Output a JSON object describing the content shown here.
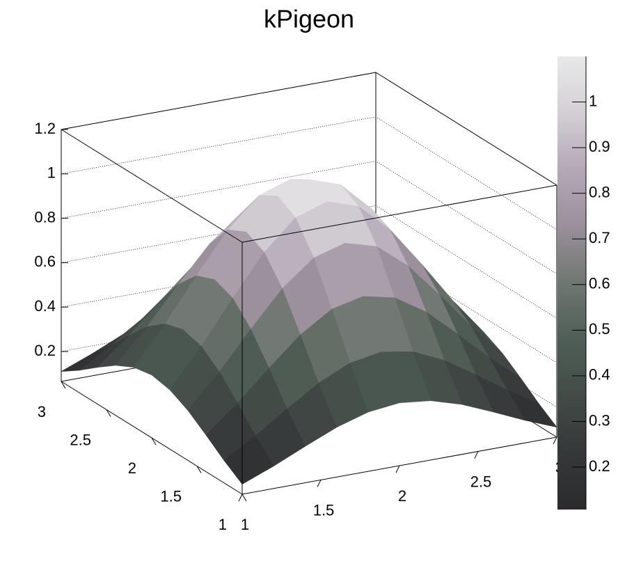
{
  "chart_data": {
    "type": "surface",
    "title": "kPigeon",
    "x": [
      1,
      1.2,
      1.4,
      1.6,
      1.8,
      2,
      2.2,
      2.4,
      2.6,
      2.8,
      3
    ],
    "y": [
      1,
      1.2,
      1.4,
      1.6,
      1.8,
      2,
      2.2,
      2.4,
      2.6,
      2.8,
      3
    ],
    "z": [
      [
        0.11,
        0.166,
        0.229,
        0.289,
        0.332,
        0.348,
        0.332,
        0.289,
        0.229,
        0.166,
        0.11
      ],
      [
        0.166,
        0.251,
        0.347,
        0.437,
        0.502,
        0.526,
        0.502,
        0.437,
        0.347,
        0.251,
        0.166
      ],
      [
        0.23,
        0.347,
        0.479,
        0.604,
        0.694,
        0.726,
        0.694,
        0.604,
        0.479,
        0.347,
        0.23
      ],
      [
        0.29,
        0.438,
        0.604,
        0.761,
        0.874,
        0.915,
        0.874,
        0.761,
        0.604,
        0.438,
        0.29
      ],
      [
        0.332,
        0.502,
        0.693,
        0.874,
        1.004,
        1.051,
        1.004,
        0.874,
        0.693,
        0.502,
        0.332
      ],
      [
        0.348,
        0.526,
        0.726,
        0.915,
        1.051,
        1.1,
        1.051,
        0.915,
        0.726,
        0.526,
        0.348
      ],
      [
        0.332,
        0.502,
        0.693,
        0.874,
        1.004,
        1.051,
        1.004,
        0.874,
        0.693,
        0.502,
        0.332
      ],
      [
        0.29,
        0.438,
        0.604,
        0.761,
        0.874,
        0.915,
        0.874,
        0.761,
        0.604,
        0.438,
        0.29
      ],
      [
        0.23,
        0.347,
        0.479,
        0.604,
        0.694,
        0.726,
        0.694,
        0.604,
        0.479,
        0.347,
        0.23
      ],
      [
        0.166,
        0.251,
        0.347,
        0.437,
        0.502,
        0.526,
        0.502,
        0.437,
        0.347,
        0.251,
        0.166
      ],
      [
        0.11,
        0.166,
        0.229,
        0.289,
        0.332,
        0.348,
        0.332,
        0.289,
        0.229,
        0.166,
        0.11
      ]
    ],
    "xlim": [
      1,
      3
    ],
    "ylim": [
      1,
      3
    ],
    "zlim": [
      0.065,
      1.2
    ],
    "xticks": [
      1,
      1.5,
      2,
      2.5,
      3
    ],
    "yticks": [
      1,
      1.5,
      2,
      2.5,
      3
    ],
    "zticks": [
      0.2,
      0.4,
      0.6,
      0.8,
      1,
      1.2
    ],
    "colorlim": [
      0.107,
      1.1
    ],
    "colorticks": [
      0.2,
      0.3,
      0.4,
      0.5,
      0.6,
      0.7,
      0.8,
      0.9,
      1
    ],
    "palette": [
      "#2b2b2d",
      "#353839",
      "#434b47",
      "#4f5e56",
      "#6f7771",
      "#9a8f9b",
      "#b4a8b6",
      "#d4cfd5",
      "#e9e9e9"
    ],
    "grid": true
  }
}
